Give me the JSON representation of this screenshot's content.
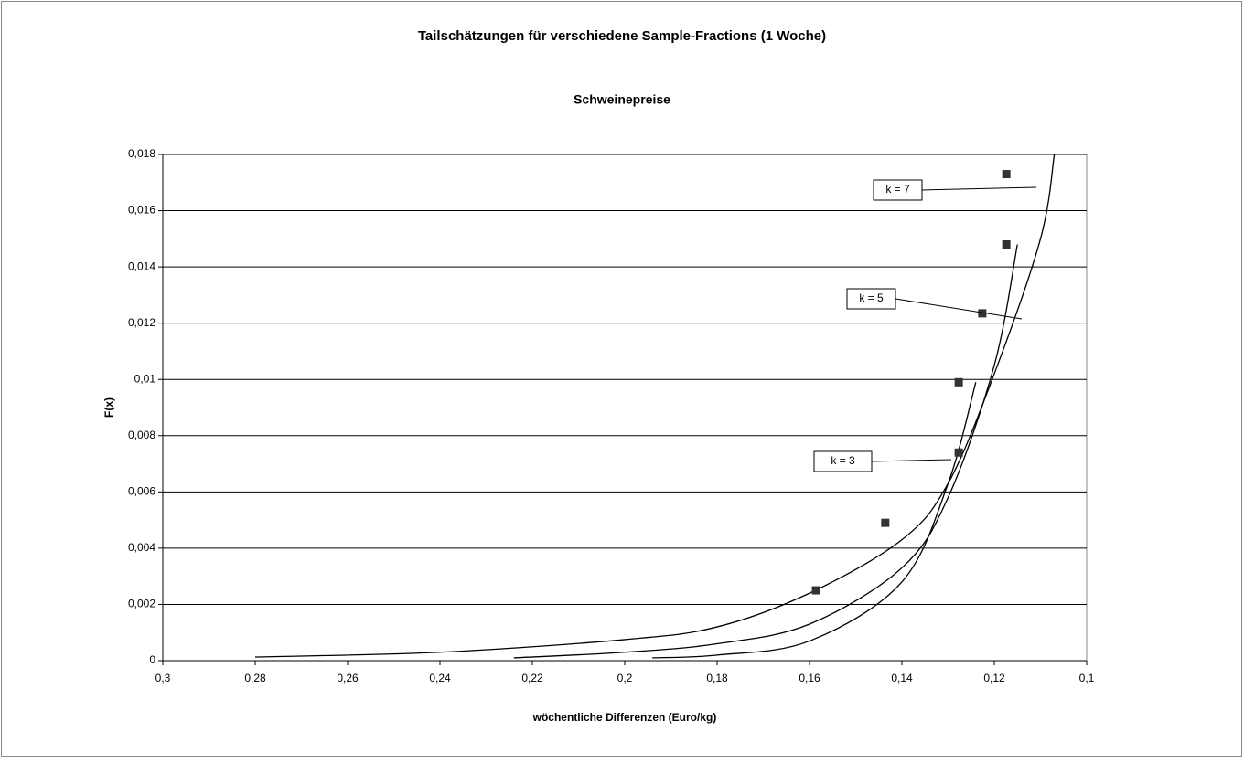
{
  "chart_data": {
    "type": "scatter",
    "title": "Tailschätzungen für verschiedene Sample-Fractions (1 Woche)",
    "subtitle": "Schweinepreise",
    "x_label": "wöchentliche Differenzen (Euro/kg)",
    "y_label": "F(x)",
    "xlim": [
      0.3,
      0.1
    ],
    "ylim": [
      0,
      0.018
    ],
    "xticks": [
      {
        "value": 0.3,
        "label": "0,3"
      },
      {
        "value": 0.28,
        "label": "0,28"
      },
      {
        "value": 0.26,
        "label": "0,26"
      },
      {
        "value": 0.24,
        "label": "0,24"
      },
      {
        "value": 0.22,
        "label": "0,22"
      },
      {
        "value": 0.2,
        "label": "0,2"
      },
      {
        "value": 0.18,
        "label": "0,18"
      },
      {
        "value": 0.16,
        "label": "0,16"
      },
      {
        "value": 0.14,
        "label": "0,14"
      },
      {
        "value": 0.12,
        "label": "0,12"
      },
      {
        "value": 0.1,
        "label": "0,1"
      }
    ],
    "yticks": [
      0,
      {
        "value": 0.002,
        "label": "0,002"
      },
      {
        "value": 0.004,
        "label": "0,004"
      },
      {
        "value": 0.006,
        "label": "0,006"
      },
      {
        "value": 0.008,
        "label": "0,008"
      },
      {
        "value": 0.01,
        "label": "0,01"
      },
      {
        "value": 0.012,
        "label": "0,012"
      },
      {
        "value": 0.014,
        "label": "0,014"
      },
      {
        "value": 0.016,
        "label": "0,016"
      },
      {
        "value": 0.018,
        "label": "0,018"
      }
    ],
    "grid": true,
    "points": {
      "color": "#333333",
      "x": [
        0.1586,
        0.1436,
        0.1277,
        0.1277,
        0.1226,
        0.1174,
        0.1174
      ],
      "values": [
        0.0025,
        0.0049,
        0.0074,
        0.0099,
        0.01235,
        0.0148,
        0.0173
      ]
    },
    "series": [
      {
        "color": "#000000",
        "x": [
          0.28,
          0.24,
          0.2,
          0.18,
          0.16,
          0.14,
          0.13,
          0.12,
          0.11,
          0.107
        ],
        "values": [
          0.00013,
          0.0003,
          0.00075,
          0.0012,
          0.0024,
          0.0043,
          0.0063,
          0.0102,
          0.015,
          0.018
        ]
      },
      {
        "color": "#000000",
        "x": [
          0.224,
          0.2,
          0.18,
          0.16,
          0.14,
          0.13,
          0.12,
          0.115
        ],
        "values": [
          0.0001,
          0.0003,
          0.0006,
          0.0013,
          0.0033,
          0.0058,
          0.0105,
          0.0148
        ]
      },
      {
        "color": "#000000",
        "x": [
          0.194,
          0.18,
          0.16,
          0.14,
          0.13,
          0.124
        ],
        "values": [
          0.0001,
          0.0002,
          0.0007,
          0.0028,
          0.0063,
          0.0099
        ]
      }
    ],
    "annotations": [
      "k = 7",
      "k = 5",
      "k = 3"
    ]
  }
}
